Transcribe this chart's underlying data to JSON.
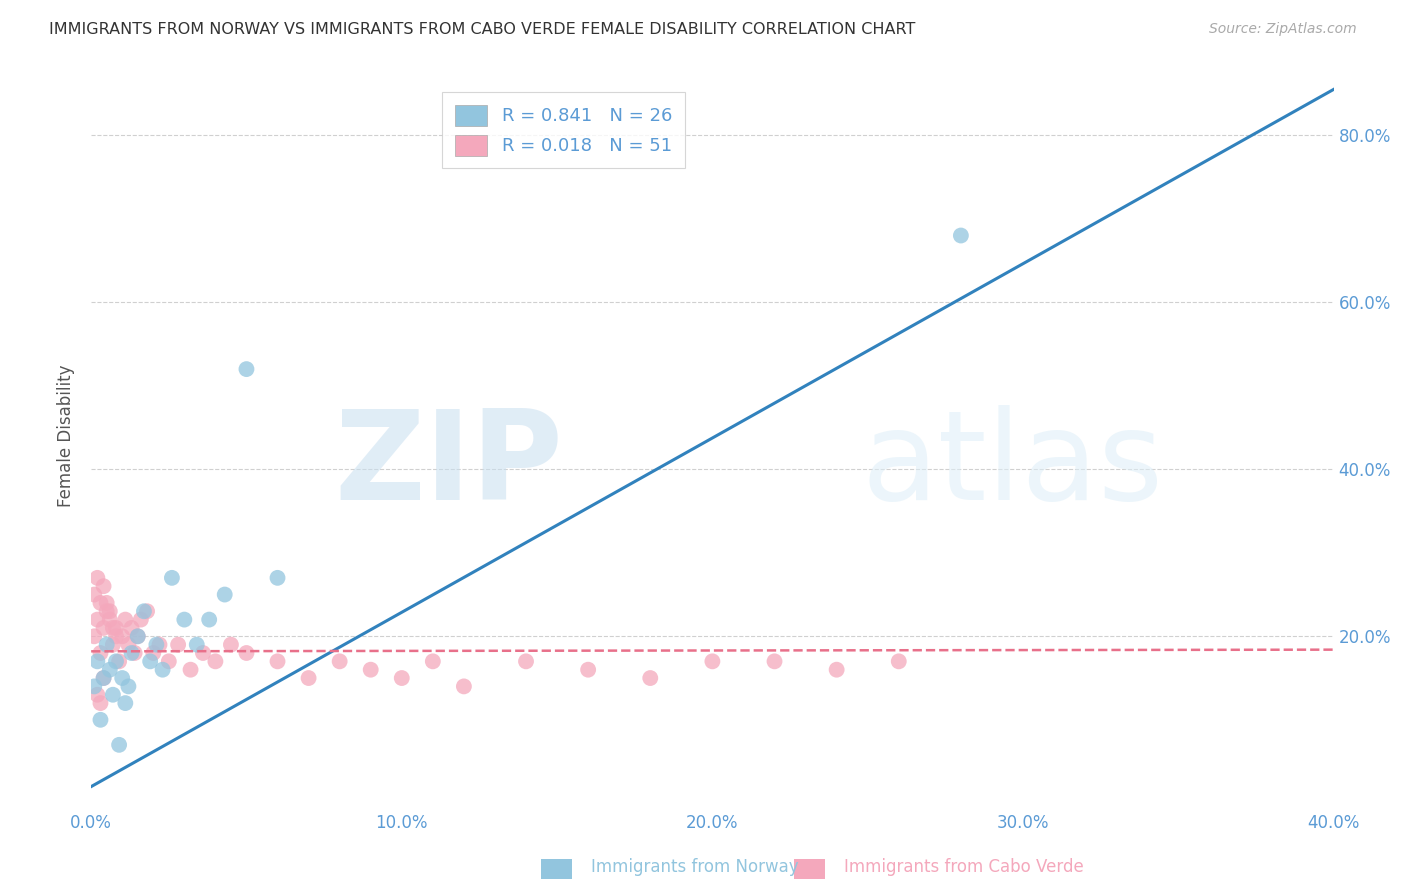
{
  "title": "IMMIGRANTS FROM NORWAY VS IMMIGRANTS FROM CABO VERDE FEMALE DISABILITY CORRELATION CHART",
  "source": "Source: ZipAtlas.com",
  "ylabel": "Female Disability",
  "xlabel_norway": "Immigrants from Norway",
  "xlabel_caboverde": "Immigrants from Cabo Verde",
  "watermark_zip": "ZIP",
  "watermark_atlas": "atlas",
  "norway_R": 0.841,
  "norway_N": 26,
  "caboverde_R": 0.018,
  "caboverde_N": 51,
  "xlim": [
    0.0,
    0.4
  ],
  "ylim": [
    0.0,
    0.88
  ],
  "xticks": [
    0.0,
    0.1,
    0.2,
    0.3,
    0.4
  ],
  "yticks": [
    0.2,
    0.4,
    0.6,
    0.8
  ],
  "norway_color": "#92c5de",
  "caboverde_color": "#f4a8bc",
  "norway_line_color": "#3182bd",
  "caboverde_line_color": "#e8708a",
  "grid_color": "#d0d0d0",
  "axis_color": "#5b9bd5",
  "title_color": "#333333",
  "source_color": "#aaaaaa",
  "norway_line_x0": 0.0,
  "norway_line_y0": 0.02,
  "norway_line_x1": 0.4,
  "norway_line_y1": 0.855,
  "caboverde_line_x0": 0.0,
  "caboverde_line_y0": 0.182,
  "caboverde_line_x1": 0.4,
  "caboverde_line_y1": 0.184,
  "norway_x": [
    0.001,
    0.002,
    0.003,
    0.004,
    0.005,
    0.006,
    0.007,
    0.008,
    0.009,
    0.01,
    0.011,
    0.012,
    0.013,
    0.015,
    0.017,
    0.019,
    0.021,
    0.023,
    0.026,
    0.03,
    0.034,
    0.038,
    0.043,
    0.05,
    0.06,
    0.28
  ],
  "norway_y": [
    0.14,
    0.17,
    0.1,
    0.15,
    0.19,
    0.16,
    0.13,
    0.17,
    0.07,
    0.15,
    0.12,
    0.14,
    0.18,
    0.2,
    0.23,
    0.17,
    0.19,
    0.16,
    0.27,
    0.22,
    0.19,
    0.22,
    0.25,
    0.52,
    0.27,
    0.68
  ],
  "caboverde_x": [
    0.001,
    0.002,
    0.003,
    0.004,
    0.005,
    0.006,
    0.007,
    0.008,
    0.009,
    0.01,
    0.011,
    0.012,
    0.013,
    0.014,
    0.015,
    0.016,
    0.018,
    0.02,
    0.022,
    0.025,
    0.028,
    0.032,
    0.036,
    0.04,
    0.045,
    0.05,
    0.06,
    0.07,
    0.08,
    0.09,
    0.1,
    0.11,
    0.12,
    0.14,
    0.16,
    0.18,
    0.2,
    0.22,
    0.24,
    0.26,
    0.001,
    0.002,
    0.003,
    0.004,
    0.005,
    0.006,
    0.007,
    0.008,
    0.002,
    0.003,
    0.004
  ],
  "caboverde_y": [
    0.2,
    0.22,
    0.18,
    0.21,
    0.24,
    0.23,
    0.19,
    0.21,
    0.17,
    0.2,
    0.22,
    0.19,
    0.21,
    0.18,
    0.2,
    0.22,
    0.23,
    0.18,
    0.19,
    0.17,
    0.19,
    0.16,
    0.18,
    0.17,
    0.19,
    0.18,
    0.17,
    0.15,
    0.17,
    0.16,
    0.15,
    0.17,
    0.14,
    0.17,
    0.16,
    0.15,
    0.17,
    0.17,
    0.16,
    0.17,
    0.25,
    0.27,
    0.24,
    0.26,
    0.23,
    0.22,
    0.21,
    0.2,
    0.13,
    0.12,
    0.15
  ]
}
